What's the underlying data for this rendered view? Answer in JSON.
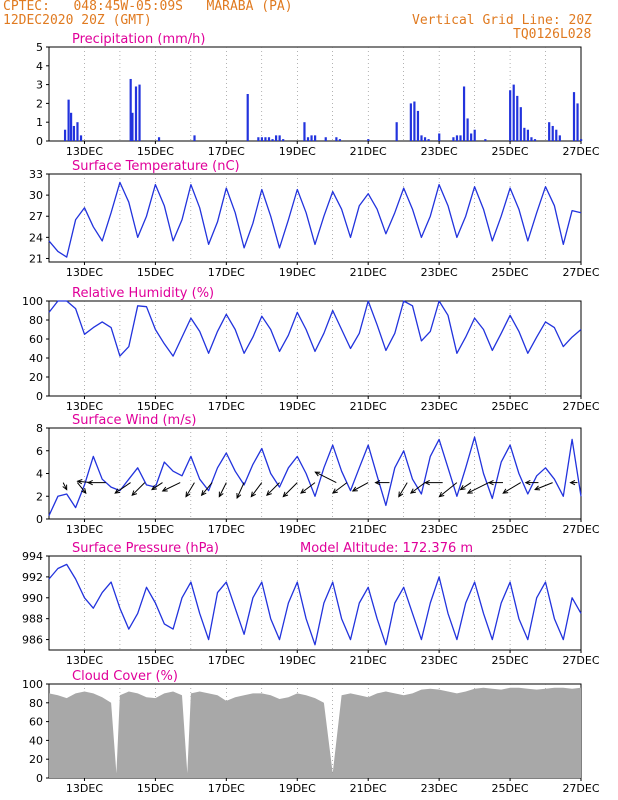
{
  "header": {
    "line1": "CPTEC:   048:45W-05:09S   MARABA (PA)",
    "line2": "12DEC2020 20Z (GMT)",
    "grid_note": "Vertical Grid Line: 20Z",
    "code": "TQ0126L028"
  },
  "colors": {
    "header": "#e07a20",
    "title": "#e0009a",
    "line": "#2233dd",
    "cloud": "#a8a8a8",
    "arrow": "#000000"
  },
  "x_ticks": [
    "13DEC",
    "15DEC",
    "17DEC",
    "19DEC",
    "21DEC",
    "23DEC",
    "25DEC",
    "27DEC"
  ],
  "chart_data": [
    {
      "type": "bar",
      "title": "Precipitation (mm/h)",
      "ylim": [
        0,
        5
      ],
      "yticks": [
        "0",
        "1",
        "2",
        "3",
        "4",
        "5"
      ],
      "x_days": [
        0.45,
        0.55,
        0.62,
        0.7,
        0.8,
        0.9,
        2.3,
        2.35,
        2.45,
        2.55,
        3.1,
        4.1,
        5.6,
        5.9,
        6.0,
        6.1,
        6.2,
        6.3,
        6.4,
        6.5,
        6.6,
        7.2,
        7.3,
        7.4,
        7.5,
        7.8,
        8.1,
        8.2,
        9.0,
        9.8,
        10.2,
        10.3,
        10.4,
        10.5,
        10.6,
        10.7,
        11.0,
        11.4,
        11.5,
        11.6,
        11.7,
        11.8,
        11.9,
        12.0,
        12.3,
        13.0,
        13.1,
        13.2,
        13.3,
        13.4,
        13.5,
        13.6,
        13.7,
        14.1,
        14.2,
        14.3,
        14.4,
        14.8,
        14.9,
        15.0
      ],
      "values": [
        0.6,
        2.2,
        1.5,
        0.8,
        1.0,
        0.3,
        3.3,
        1.5,
        2.9,
        3.0,
        0.2,
        0.3,
        2.5,
        0.2,
        0.2,
        0.2,
        0.2,
        0.1,
        0.3,
        0.3,
        0.1,
        1.0,
        0.2,
        0.3,
        0.3,
        0.2,
        0.2,
        0.1,
        0.1,
        1.0,
        2.0,
        2.1,
        1.6,
        0.3,
        0.2,
        0.1,
        0.4,
        0.2,
        0.3,
        0.3,
        2.9,
        1.2,
        0.4,
        0.6,
        0.1,
        2.7,
        3.0,
        2.4,
        1.8,
        0.7,
        0.6,
        0.2,
        0.1,
        1.0,
        0.8,
        0.6,
        0.3,
        2.6,
        2.0,
        0.1
      ]
    },
    {
      "type": "line",
      "title": "Surface Temperature (nC)",
      "ylim": [
        20.5,
        33
      ],
      "yticks": [
        "21",
        "24",
        "27",
        "30",
        "33"
      ],
      "x_days": [
        0,
        0.25,
        0.5,
        0.75,
        1,
        1.25,
        1.5,
        1.75,
        2,
        2.25,
        2.5,
        2.75,
        3,
        3.25,
        3.5,
        3.75,
        4,
        4.25,
        4.5,
        4.75,
        5,
        5.25,
        5.5,
        5.75,
        6,
        6.25,
        6.5,
        6.75,
        7,
        7.25,
        7.5,
        7.75,
        8,
        8.25,
        8.5,
        8.75,
        9,
        9.25,
        9.5,
        9.75,
        10,
        10.25,
        10.5,
        10.75,
        11,
        11.25,
        11.5,
        11.75,
        12,
        12.25,
        12.5,
        12.75,
        13,
        13.25,
        13.5,
        13.75,
        14,
        14.25,
        14.5,
        14.75,
        15
      ],
      "values": [
        23.5,
        22.0,
        21.2,
        26.5,
        28.2,
        25.5,
        23.5,
        27.5,
        31.8,
        29.0,
        24.0,
        27.0,
        31.5,
        28.5,
        23.5,
        26.5,
        31.5,
        28.2,
        23.0,
        26.2,
        31.0,
        27.5,
        22.5,
        26.0,
        30.8,
        27.0,
        22.5,
        26.5,
        30.8,
        27.5,
        23.0,
        27.0,
        30.5,
        28.0,
        24.0,
        28.5,
        30.2,
        28.0,
        24.5,
        27.5,
        31.0,
        28.0,
        24.0,
        27.0,
        31.5,
        28.5,
        24.0,
        27.0,
        31.2,
        28.0,
        23.5,
        27.0,
        31.0,
        28.0,
        23.5,
        27.5,
        31.2,
        28.5,
        23.0,
        27.8,
        27.5
      ]
    },
    {
      "type": "line",
      "title": "Relative Humidity (%)",
      "ylim": [
        0,
        100
      ],
      "yticks": [
        "0",
        "20",
        "40",
        "60",
        "80",
        "100"
      ],
      "x_days": [
        0,
        0.25,
        0.5,
        0.75,
        1,
        1.25,
        1.5,
        1.75,
        2,
        2.25,
        2.5,
        2.75,
        3,
        3.25,
        3.5,
        3.75,
        4,
        4.25,
        4.5,
        4.75,
        5,
        5.25,
        5.5,
        5.75,
        6,
        6.25,
        6.5,
        6.75,
        7,
        7.25,
        7.5,
        7.75,
        8,
        8.25,
        8.5,
        8.75,
        9,
        9.25,
        9.5,
        9.75,
        10,
        10.25,
        10.5,
        10.75,
        11,
        11.25,
        11.5,
        11.75,
        12,
        12.25,
        12.5,
        12.75,
        13,
        13.25,
        13.5,
        13.75,
        14,
        14.25,
        14.5,
        14.75,
        15
      ],
      "values": [
        88,
        100,
        100,
        92,
        65,
        72,
        78,
        72,
        42,
        52,
        95,
        94,
        70,
        55,
        42,
        62,
        82,
        68,
        45,
        68,
        86,
        70,
        45,
        62,
        84,
        70,
        47,
        64,
        88,
        70,
        47,
        66,
        90,
        70,
        50,
        66,
        100,
        75,
        48,
        66,
        100,
        95,
        58,
        68,
        100,
        85,
        45,
        62,
        82,
        70,
        48,
        66,
        85,
        68,
        45,
        62,
        78,
        72,
        52,
        62,
        70
      ]
    },
    {
      "type": "line",
      "title": "Surface Wind (m/s)",
      "ylim": [
        0,
        8
      ],
      "yticks": [
        "0",
        "2",
        "4",
        "6",
        "8"
      ],
      "x_days": [
        0,
        0.25,
        0.5,
        0.75,
        1,
        1.25,
        1.5,
        1.75,
        2,
        2.25,
        2.5,
        2.75,
        3,
        3.25,
        3.5,
        3.75,
        4,
        4.25,
        4.5,
        4.75,
        5,
        5.25,
        5.5,
        5.75,
        6,
        6.25,
        6.5,
        6.75,
        7,
        7.25,
        7.5,
        7.75,
        8,
        8.25,
        8.5,
        8.75,
        9,
        9.25,
        9.5,
        9.75,
        10,
        10.25,
        10.5,
        10.75,
        11,
        11.25,
        11.5,
        11.75,
        12,
        12.25,
        12.5,
        12.75,
        13,
        13.25,
        13.5,
        13.75,
        14,
        14.25,
        14.5,
        14.75,
        15
      ],
      "values": [
        0.3,
        2.0,
        2.2,
        1.0,
        3.0,
        5.5,
        3.5,
        2.8,
        2.5,
        3.5,
        4.5,
        3.0,
        2.8,
        5.0,
        4.2,
        3.8,
        5.5,
        3.5,
        2.5,
        4.5,
        5.8,
        4.2,
        3.0,
        4.8,
        6.2,
        4.0,
        2.8,
        4.5,
        5.5,
        4.0,
        2.0,
        4.5,
        6.5,
        4.2,
        2.5,
        4.5,
        6.5,
        3.8,
        1.2,
        4.5,
        6.0,
        3.5,
        2.2,
        5.5,
        7.0,
        4.5,
        2.0,
        4.5,
        7.2,
        4.0,
        1.8,
        5.0,
        6.5,
        4.0,
        2.2,
        3.8,
        4.5,
        3.5,
        2.0,
        7.0,
        2.0
      ]
    },
    {
      "type": "line",
      "title": "Surface Pressure (hPa)",
      "note": "Model Altitude: 172.376 m",
      "ylim": [
        985,
        994
      ],
      "yticks": [
        "986",
        "988",
        "990",
        "992",
        "994"
      ],
      "x_days": [
        0,
        0.25,
        0.5,
        0.75,
        1,
        1.25,
        1.5,
        1.75,
        2,
        2.25,
        2.5,
        2.75,
        3,
        3.25,
        3.5,
        3.75,
        4,
        4.25,
        4.5,
        4.75,
        5,
        5.25,
        5.5,
        5.75,
        6,
        6.25,
        6.5,
        6.75,
        7,
        7.25,
        7.5,
        7.75,
        8,
        8.25,
        8.5,
        8.75,
        9,
        9.25,
        9.5,
        9.75,
        10,
        10.25,
        10.5,
        10.75,
        11,
        11.25,
        11.5,
        11.75,
        12,
        12.25,
        12.5,
        12.75,
        13,
        13.25,
        13.5,
        13.75,
        14,
        14.25,
        14.5,
        14.75,
        15
      ],
      "values": [
        991.8,
        992.8,
        993.2,
        991.8,
        990.0,
        989.0,
        990.5,
        991.5,
        989.0,
        987.0,
        988.5,
        991.0,
        989.5,
        987.5,
        987.0,
        990.0,
        991.5,
        988.5,
        986.0,
        990.5,
        991.5,
        989.0,
        986.5,
        990.0,
        991.5,
        988.0,
        986.0,
        989.5,
        991.5,
        988.0,
        985.5,
        989.5,
        991.5,
        988.0,
        986.0,
        989.5,
        991.0,
        988.0,
        985.5,
        989.5,
        991.0,
        988.5,
        986.0,
        989.5,
        992.0,
        988.5,
        986.0,
        989.5,
        991.5,
        988.5,
        986.0,
        989.5,
        991.5,
        988.0,
        986.0,
        990.0,
        991.5,
        988.0,
        986.0,
        990.0,
        988.5
      ]
    },
    {
      "type": "area",
      "title": "Cloud Cover (%)",
      "ylim": [
        0,
        100
      ],
      "yticks": [
        "0",
        "20",
        "40",
        "60",
        "80",
        "100"
      ],
      "x_days": [
        0,
        0.25,
        0.5,
        0.75,
        1,
        1.25,
        1.5,
        1.75,
        1.9,
        2.0,
        2.25,
        2.5,
        2.75,
        3,
        3.25,
        3.5,
        3.75,
        3.9,
        4.0,
        4.25,
        4.5,
        4.75,
        5,
        5.25,
        5.5,
        5.75,
        6,
        6.25,
        6.5,
        6.75,
        7,
        7.25,
        7.5,
        7.75,
        8,
        8.25,
        8.5,
        8.75,
        9,
        9.25,
        9.5,
        9.75,
        10,
        10.25,
        10.5,
        10.75,
        11,
        11.25,
        11.5,
        11.75,
        12,
        12.25,
        12.5,
        12.75,
        13,
        13.25,
        13.5,
        13.75,
        14,
        14.25,
        14.5,
        14.75,
        15
      ],
      "values": [
        90,
        88,
        85,
        90,
        92,
        90,
        86,
        80,
        5,
        88,
        92,
        90,
        86,
        85,
        90,
        92,
        88,
        5,
        90,
        92,
        90,
        88,
        82,
        86,
        88,
        90,
        90,
        88,
        84,
        86,
        90,
        88,
        85,
        80,
        5,
        88,
        90,
        88,
        86,
        90,
        92,
        90,
        88,
        90,
        94,
        95,
        94,
        92,
        90,
        92,
        95,
        96,
        95,
        94,
        96,
        96,
        95,
        94,
        95,
        96,
        96,
        95,
        96
      ]
    },
    {
      "type": "vector",
      "title": "Surface Wind direction",
      "x_days": [
        0.4,
        0.8,
        1.2,
        1.6,
        2.3,
        2.7,
        3.2,
        3.7,
        4.1,
        4.6,
        5.0,
        5.5,
        6.0,
        6.5,
        7.0,
        7.5,
        8.1,
        8.4,
        9.0,
        9.6,
        10.1,
        10.6,
        11.1,
        11.5,
        11.9,
        12.4,
        12.8,
        13.3,
        13.8,
        14.2,
        14.9
      ],
      "u": [
        0.5,
        1.2,
        -2.0,
        -2.5,
        -2.2,
        -1.8,
        -1.5,
        -2.5,
        -1.2,
        -1.5,
        -1.0,
        -1.0,
        -1.5,
        -1.8,
        -2.0,
        -2.0,
        -3.0,
        -2.0,
        -2.2,
        -2.0,
        -1.2,
        -2.0,
        -2.5,
        -2.5,
        -1.5,
        -3.0,
        -2.0,
        -2.5,
        -1.8,
        -2.5,
        -1.0
      ],
      "v": [
        -1.0,
        -1.5,
        0.2,
        0.0,
        -1.5,
        -1.8,
        -1.0,
        -1.2,
        -2.0,
        -1.8,
        -2.0,
        -2.2,
        -2.0,
        -1.8,
        -2.0,
        -1.5,
        1.5,
        -1.5,
        -1.2,
        0.0,
        -2.0,
        -1.5,
        0.0,
        -2.0,
        -1.0,
        -1.5,
        0.0,
        -1.5,
        0.0,
        -1.0,
        0.0
      ]
    }
  ]
}
